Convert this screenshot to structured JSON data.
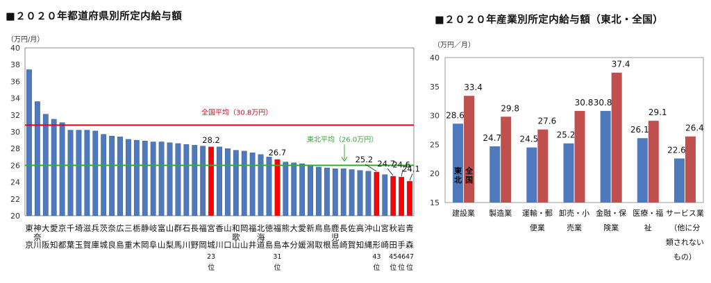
{
  "chart_data": [
    {
      "type": "bar",
      "title": "■２０２０年都道府県別所定内給与額",
      "ylabel": "（万円/月）",
      "ylim": [
        20,
        40
      ],
      "yticks": [
        20,
        22,
        24,
        26,
        28,
        30,
        32,
        34,
        36,
        38,
        40
      ],
      "categories": [
        [
          "東",
          "京"
        ],
        [
          "神奈",
          "川"
        ],
        [
          "大",
          "阪"
        ],
        [
          "愛",
          "知"
        ],
        [
          "京",
          "都"
        ],
        [
          "千",
          "葉"
        ],
        [
          "埼",
          "玉"
        ],
        [
          "滋",
          "賀"
        ],
        [
          "兵",
          "庫"
        ],
        [
          "茨",
          "城"
        ],
        [
          "奈",
          "良"
        ],
        [
          "広",
          "島"
        ],
        [
          "三",
          "重"
        ],
        [
          "栃",
          "木"
        ],
        [
          "静",
          "岡"
        ],
        [
          "岐",
          "阜"
        ],
        [
          "富",
          "山"
        ],
        [
          "山",
          "梨"
        ],
        [
          "群",
          "馬"
        ],
        [
          "石",
          "川"
        ],
        [
          "長",
          "野"
        ],
        [
          "福",
          "岡"
        ],
        [
          "宮",
          "城"
        ],
        [
          "香",
          "川"
        ],
        [
          "山",
          "口"
        ],
        [
          "和歌",
          "山"
        ],
        [
          "岡",
          "山"
        ],
        [
          "福",
          "井"
        ],
        [
          "北海",
          "道"
        ],
        [
          "徳",
          "島"
        ],
        [
          "福",
          "島"
        ],
        [
          "熊",
          "本"
        ],
        [
          "大",
          "分"
        ],
        [
          "愛",
          "媛"
        ],
        [
          "新",
          "潟"
        ],
        [
          "鳥",
          "取"
        ],
        [
          "島",
          "根"
        ],
        [
          "鹿児",
          "島"
        ],
        [
          "長",
          "崎"
        ],
        [
          "佐",
          "賀"
        ],
        [
          "高",
          "知"
        ],
        [
          "沖",
          "縄"
        ],
        [
          "山",
          "形"
        ],
        [
          "宮",
          "崎"
        ],
        [
          "秋",
          "田"
        ],
        [
          "岩",
          "手"
        ],
        [
          "青",
          "森"
        ]
      ],
      "values": [
        37.4,
        33.6,
        32.1,
        31.5,
        31.1,
        30.2,
        30.2,
        30.2,
        30.1,
        29.7,
        29.5,
        29.4,
        29.1,
        29.0,
        28.9,
        28.8,
        28.8,
        28.7,
        28.6,
        28.5,
        28.4,
        28.3,
        28.2,
        28.2,
        28.0,
        27.8,
        27.7,
        27.5,
        27.3,
        27.0,
        26.7,
        26.4,
        26.3,
        26.2,
        26.0,
        25.8,
        25.7,
        25.6,
        25.6,
        25.5,
        25.4,
        25.3,
        25.2,
        24.9,
        24.7,
        24.6,
        24.1
      ],
      "highlighted_indices": [
        22,
        30,
        42,
        44,
        45,
        46
      ],
      "colors": {
        "normal": "#4f79bd",
        "highlight": "#ff0000",
        "avg_national": "#e8001c",
        "avg_tohoku": "#33aa33"
      },
      "data_labels": [
        {
          "index": 22,
          "text": "28.2"
        },
        {
          "index": 30,
          "text": "26.7"
        },
        {
          "index": 42,
          "text": "25.2"
        },
        {
          "index": 44,
          "text": "24.7"
        },
        {
          "index": 45,
          "text": "24.6"
        },
        {
          "index": 46,
          "text": "24.1"
        }
      ],
      "rank_labels": [
        {
          "index": 22,
          "number": "23",
          "unit": "位"
        },
        {
          "index": 30,
          "number": "31",
          "unit": "位"
        },
        {
          "index": 42,
          "number": "43",
          "unit": "位"
        },
        {
          "index": 44,
          "number": "45",
          "unit": "位"
        },
        {
          "index": 45,
          "number": "46",
          "unit": "位"
        },
        {
          "index": 46,
          "number": "47",
          "unit": "位"
        }
      ],
      "reference_lines": [
        {
          "name": "national-average",
          "value": 30.8,
          "label": "全国平均（30.8万円）",
          "color": "#e8001c"
        },
        {
          "name": "tohoku-average",
          "value": 26.0,
          "label": "東北平均（26.0万円）",
          "color": "#33aa33"
        }
      ]
    },
    {
      "type": "bar",
      "title": "■２０２０年産業別所定内給与額（東北・全国）",
      "ylabel": "（万円／月）",
      "ylim": [
        15,
        40
      ],
      "yticks": [
        15,
        20,
        25,
        30,
        35,
        40
      ],
      "categories": [
        [
          "建設業"
        ],
        [
          "製造業"
        ],
        [
          "運輸・郵",
          "便業"
        ],
        [
          "卸売・小",
          "売業"
        ],
        [
          "金融・保",
          "険業"
        ],
        [
          "医療・福",
          "祉"
        ],
        [
          "サービス業",
          "（他に分",
          "類されない",
          "もの）"
        ]
      ],
      "series": [
        {
          "name": "東北",
          "legend_chars": [
            "東",
            "北"
          ],
          "color": "#4f79bd",
          "values": [
            28.6,
            24.7,
            24.5,
            25.2,
            30.8,
            26.1,
            22.6
          ]
        },
        {
          "name": "全国",
          "legend_chars": [
            "全",
            "国"
          ],
          "color": "#c0504d",
          "values": [
            33.4,
            29.8,
            27.6,
            30.8,
            37.4,
            29.1,
            26.4
          ]
        }
      ]
    }
  ]
}
